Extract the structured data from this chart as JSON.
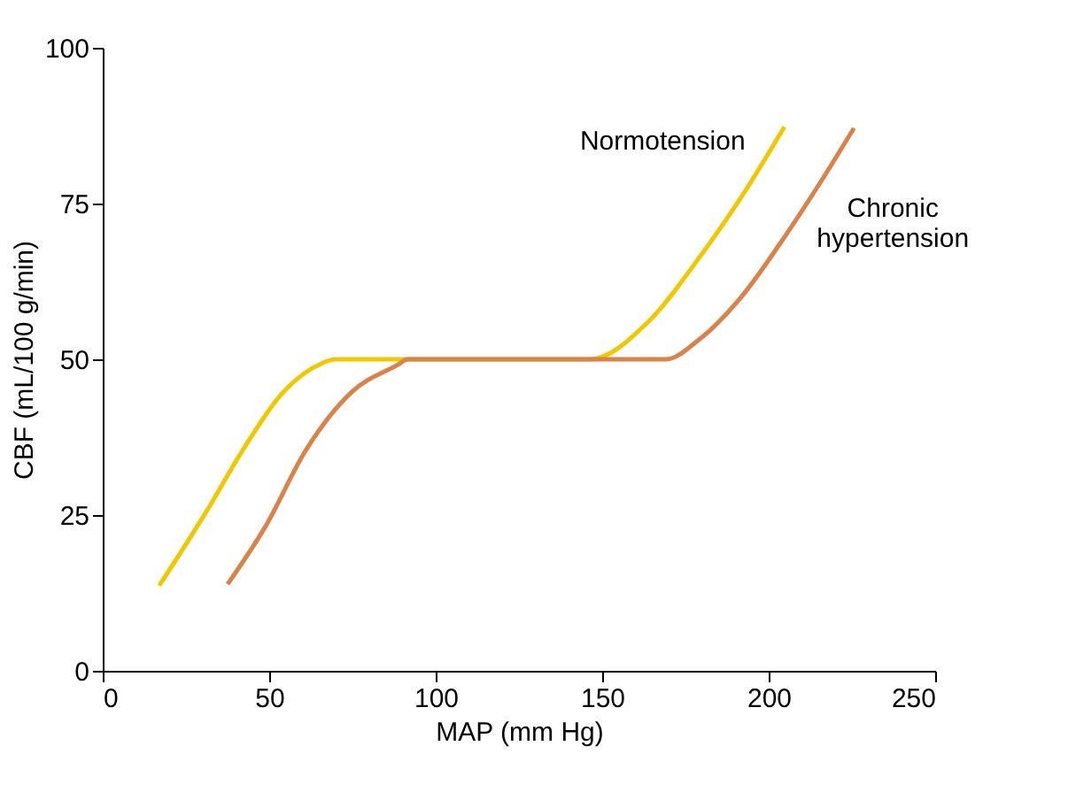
{
  "chart_data": {
    "type": "line",
    "xlabel": "MAP (mm Hg)",
    "ylabel": "CBF (mL/100 g/min)",
    "xlim": [
      0,
      250
    ],
    "xticks": [
      0,
      50,
      100,
      150,
      200,
      250
    ],
    "ylim": [
      0,
      100
    ],
    "yticks": [
      0,
      25,
      50,
      75,
      100
    ],
    "grid": false,
    "legend": false,
    "marker": "none",
    "line_style": "solid",
    "series": [
      {
        "name": "Normotension",
        "color": "#f0c800",
        "x": [
          17,
          31.4,
          41.8,
          54,
          66,
          69.7,
          146.3,
          163.8,
          179.4,
          191.6,
          204.7
        ],
        "values": [
          13.7,
          25.8,
          35.2,
          44.6,
          49.4,
          50,
          50,
          56,
          66.5,
          75.9,
          87.3
        ]
      },
      {
        "name": "Chronic hypertension",
        "color": "#d9824a",
        "x": [
          37.5,
          48.8,
          61,
          74.9,
          88.9,
          91.5,
          169,
          179.4,
          191.6,
          205.6,
          216,
          225.6
        ],
        "values": [
          13.9,
          23.1,
          35.4,
          44.8,
          49.2,
          50,
          50,
          53.3,
          59.9,
          70.3,
          78.8,
          87.1
        ]
      }
    ]
  }
}
